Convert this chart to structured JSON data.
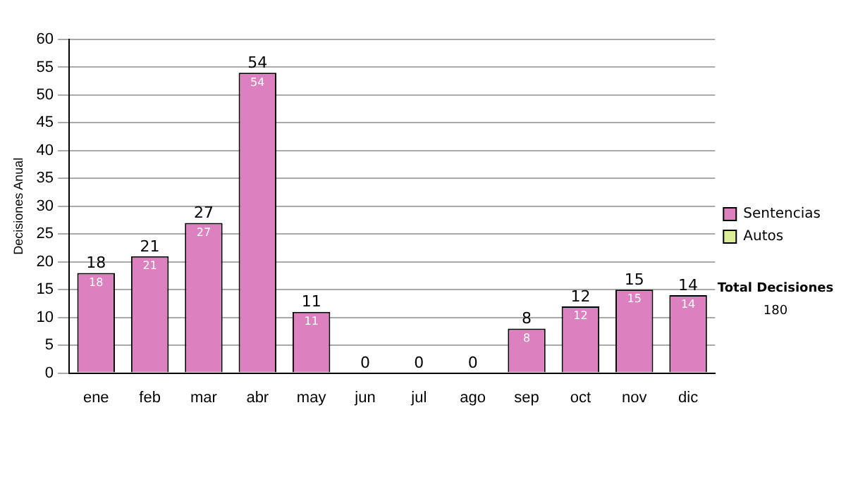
{
  "chart_data": {
    "type": "bar",
    "stacked": true,
    "ylabel": "Decisiones Anual",
    "categories": [
      "ene",
      "feb",
      "mar",
      "abr",
      "may",
      "jun",
      "jul",
      "ago",
      "sep",
      "oct",
      "nov",
      "dic"
    ],
    "series": [
      {
        "name": "Sentencias",
        "color": "#dd80c0",
        "values": [
          18,
          21,
          27,
          54,
          11,
          0,
          0,
          0,
          8,
          12,
          15,
          14
        ],
        "value_labels": [
          "18",
          "21",
          "27",
          "54",
          "11",
          null,
          null,
          null,
          "8",
          "12",
          "15",
          "14"
        ]
      },
      {
        "name": "Autos",
        "color": "#ddee99",
        "values": [
          0,
          0,
          0,
          0,
          0,
          0,
          0,
          0,
          0,
          0,
          0,
          0
        ]
      }
    ],
    "totals": [
      "18",
      "21",
      "27",
      "54",
      "11",
      "0",
      "0",
      "0",
      "8",
      "12",
      "15",
      "14"
    ],
    "ylim": [
      0,
      60
    ],
    "yticks": [
      0,
      5,
      10,
      15,
      20,
      25,
      30,
      35,
      40,
      45,
      50,
      55,
      60
    ],
    "grid": "y",
    "legend": "right",
    "annotations": [
      "Total Decisiones",
      "180"
    ]
  }
}
